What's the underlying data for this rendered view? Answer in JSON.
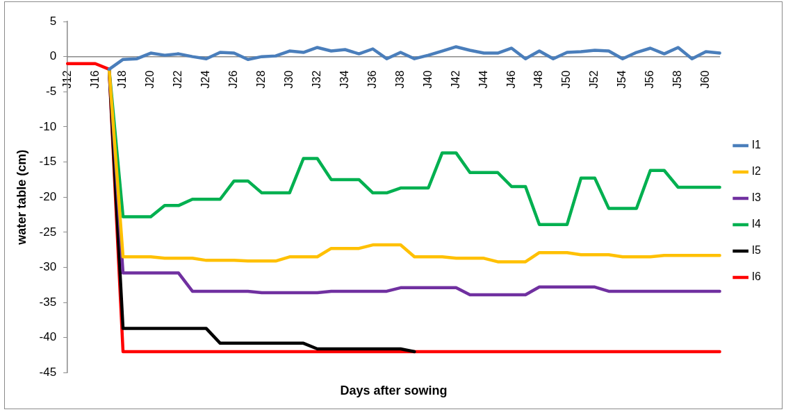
{
  "chart_data": {
    "type": "line",
    "xlabel": "Days after sowing",
    "ylabel": "water table (cm)",
    "categories": [
      "J12",
      null,
      "J16",
      null,
      "J18",
      null,
      "J20",
      null,
      "J22",
      null,
      "J24",
      null,
      "J26",
      null,
      "J28",
      null,
      "J30",
      null,
      "J32",
      null,
      "J34",
      null,
      "J36",
      null,
      "J38",
      null,
      "J40",
      null,
      "J42",
      null,
      "J44",
      null,
      "J46",
      null,
      "J48",
      null,
      "J50",
      null,
      "J52",
      null,
      "J54",
      null,
      "J56",
      null,
      "J58",
      null,
      "J60",
      null
    ],
    "ylim": [
      -45,
      5
    ],
    "yticks": [
      5,
      0,
      -5,
      -10,
      -15,
      -20,
      -25,
      -30,
      -35,
      -40,
      -45
    ],
    "grid": false,
    "legend": "right",
    "marker": "none",
    "line_style": "solid",
    "series": [
      {
        "name": "I1",
        "color": "#4a7ebb",
        "values": [
          null,
          null,
          null,
          -1.8,
          -0.4,
          -0.3,
          0.5,
          0.2,
          0.4,
          0,
          -0.3,
          0.6,
          0.5,
          -0.4,
          0,
          0.1,
          0.8,
          0.6,
          1.3,
          0.8,
          1.0,
          0.4,
          1.1,
          -0.3,
          0.6,
          -0.3,
          0.2,
          0.8,
          1.4,
          0.9,
          0.5,
          0.5,
          1.2,
          -0.3,
          0.8,
          -0.3,
          0.6,
          0.7,
          0.9,
          0.8,
          -0.3,
          0.6,
          1.2,
          0.4,
          1.3,
          -0.3,
          0.7,
          0.5
        ]
      },
      {
        "name": "I2",
        "color": "#ffc000",
        "values": [
          null,
          null,
          null,
          -1.8,
          -28.5,
          -28.5,
          -28.5,
          -28.7,
          -28.7,
          -28.7,
          -29.0,
          -29.0,
          -29.0,
          -29.1,
          -29.1,
          -29.1,
          -28.5,
          -28.5,
          -28.5,
          -27.3,
          -27.3,
          -27.3,
          -26.8,
          -26.8,
          -26.8,
          -28.5,
          -28.5,
          -28.5,
          -28.7,
          -28.7,
          -28.7,
          -29.2,
          -29.2,
          -29.2,
          -27.9,
          -27.9,
          -27.9,
          -28.2,
          -28.2,
          -28.2,
          -28.5,
          -28.5,
          -28.5,
          -28.3,
          -28.3,
          -28.3,
          -28.3,
          -28.3
        ]
      },
      {
        "name": "I3",
        "color": "#7030a0",
        "values": [
          null,
          null,
          null,
          -1.8,
          -30.8,
          -30.8,
          -30.8,
          -30.8,
          -30.8,
          -33.4,
          -33.4,
          -33.4,
          -33.4,
          -33.4,
          -33.6,
          -33.6,
          -33.6,
          -33.6,
          -33.6,
          -33.4,
          -33.4,
          -33.4,
          -33.4,
          -33.4,
          -32.9,
          -32.9,
          -32.9,
          -32.9,
          -32.9,
          -33.9,
          -33.9,
          -33.9,
          -33.9,
          -33.9,
          -32.8,
          -32.8,
          -32.8,
          -32.8,
          -32.8,
          -33.4,
          -33.4,
          -33.4,
          -33.4,
          -33.4,
          -33.4,
          -33.4,
          -33.4,
          -33.4
        ]
      },
      {
        "name": "I4",
        "color": "#00b050",
        "values": [
          null,
          null,
          null,
          -1.8,
          -22.8,
          -22.8,
          -22.8,
          -21.2,
          -21.2,
          -20.3,
          -20.3,
          -20.3,
          -17.7,
          -17.7,
          -19.4,
          -19.4,
          -19.4,
          -14.5,
          -14.5,
          -17.5,
          -17.5,
          -17.5,
          -19.4,
          -19.4,
          -18.7,
          -18.7,
          -18.7,
          -13.7,
          -13.7,
          -16.5,
          -16.5,
          -16.5,
          -18.5,
          -18.5,
          -23.9,
          -23.9,
          -23.9,
          -17.3,
          -17.3,
          -21.6,
          -21.6,
          -21.6,
          -16.2,
          -16.2,
          -18.6,
          -18.6,
          -18.6,
          -18.6
        ]
      },
      {
        "name": "I5",
        "color": "#000000",
        "values": [
          null,
          null,
          null,
          -1.8,
          -38.7,
          -38.7,
          -38.7,
          -38.7,
          -38.7,
          -38.7,
          -38.7,
          -40.8,
          -40.8,
          -40.8,
          -40.8,
          -40.8,
          -40.8,
          -40.8,
          -41.6,
          -41.6,
          -41.6,
          -41.6,
          -41.6,
          -41.6,
          -41.6,
          -42,
          null,
          null,
          null,
          null,
          null,
          null,
          null,
          null,
          null,
          null,
          null,
          null,
          null,
          null,
          null,
          null,
          null,
          null,
          null,
          null,
          null,
          null
        ]
      },
      {
        "name": "I6",
        "color": "#ff0000",
        "values": [
          -1,
          -1,
          -1,
          -1.8,
          -42,
          -42,
          -42,
          -42,
          -42,
          -42,
          -42,
          -42,
          -42,
          -42,
          -42,
          -42,
          -42,
          -42,
          -42,
          -42,
          -42,
          -42,
          -42,
          -42,
          -42,
          -42,
          -42,
          -42,
          -42,
          -42,
          -42,
          -42,
          -42,
          -42,
          -42,
          -42,
          -42,
          -42,
          -42,
          -42,
          -42,
          -42,
          -42,
          -42,
          -42,
          -42,
          -42,
          -42
        ]
      }
    ]
  }
}
